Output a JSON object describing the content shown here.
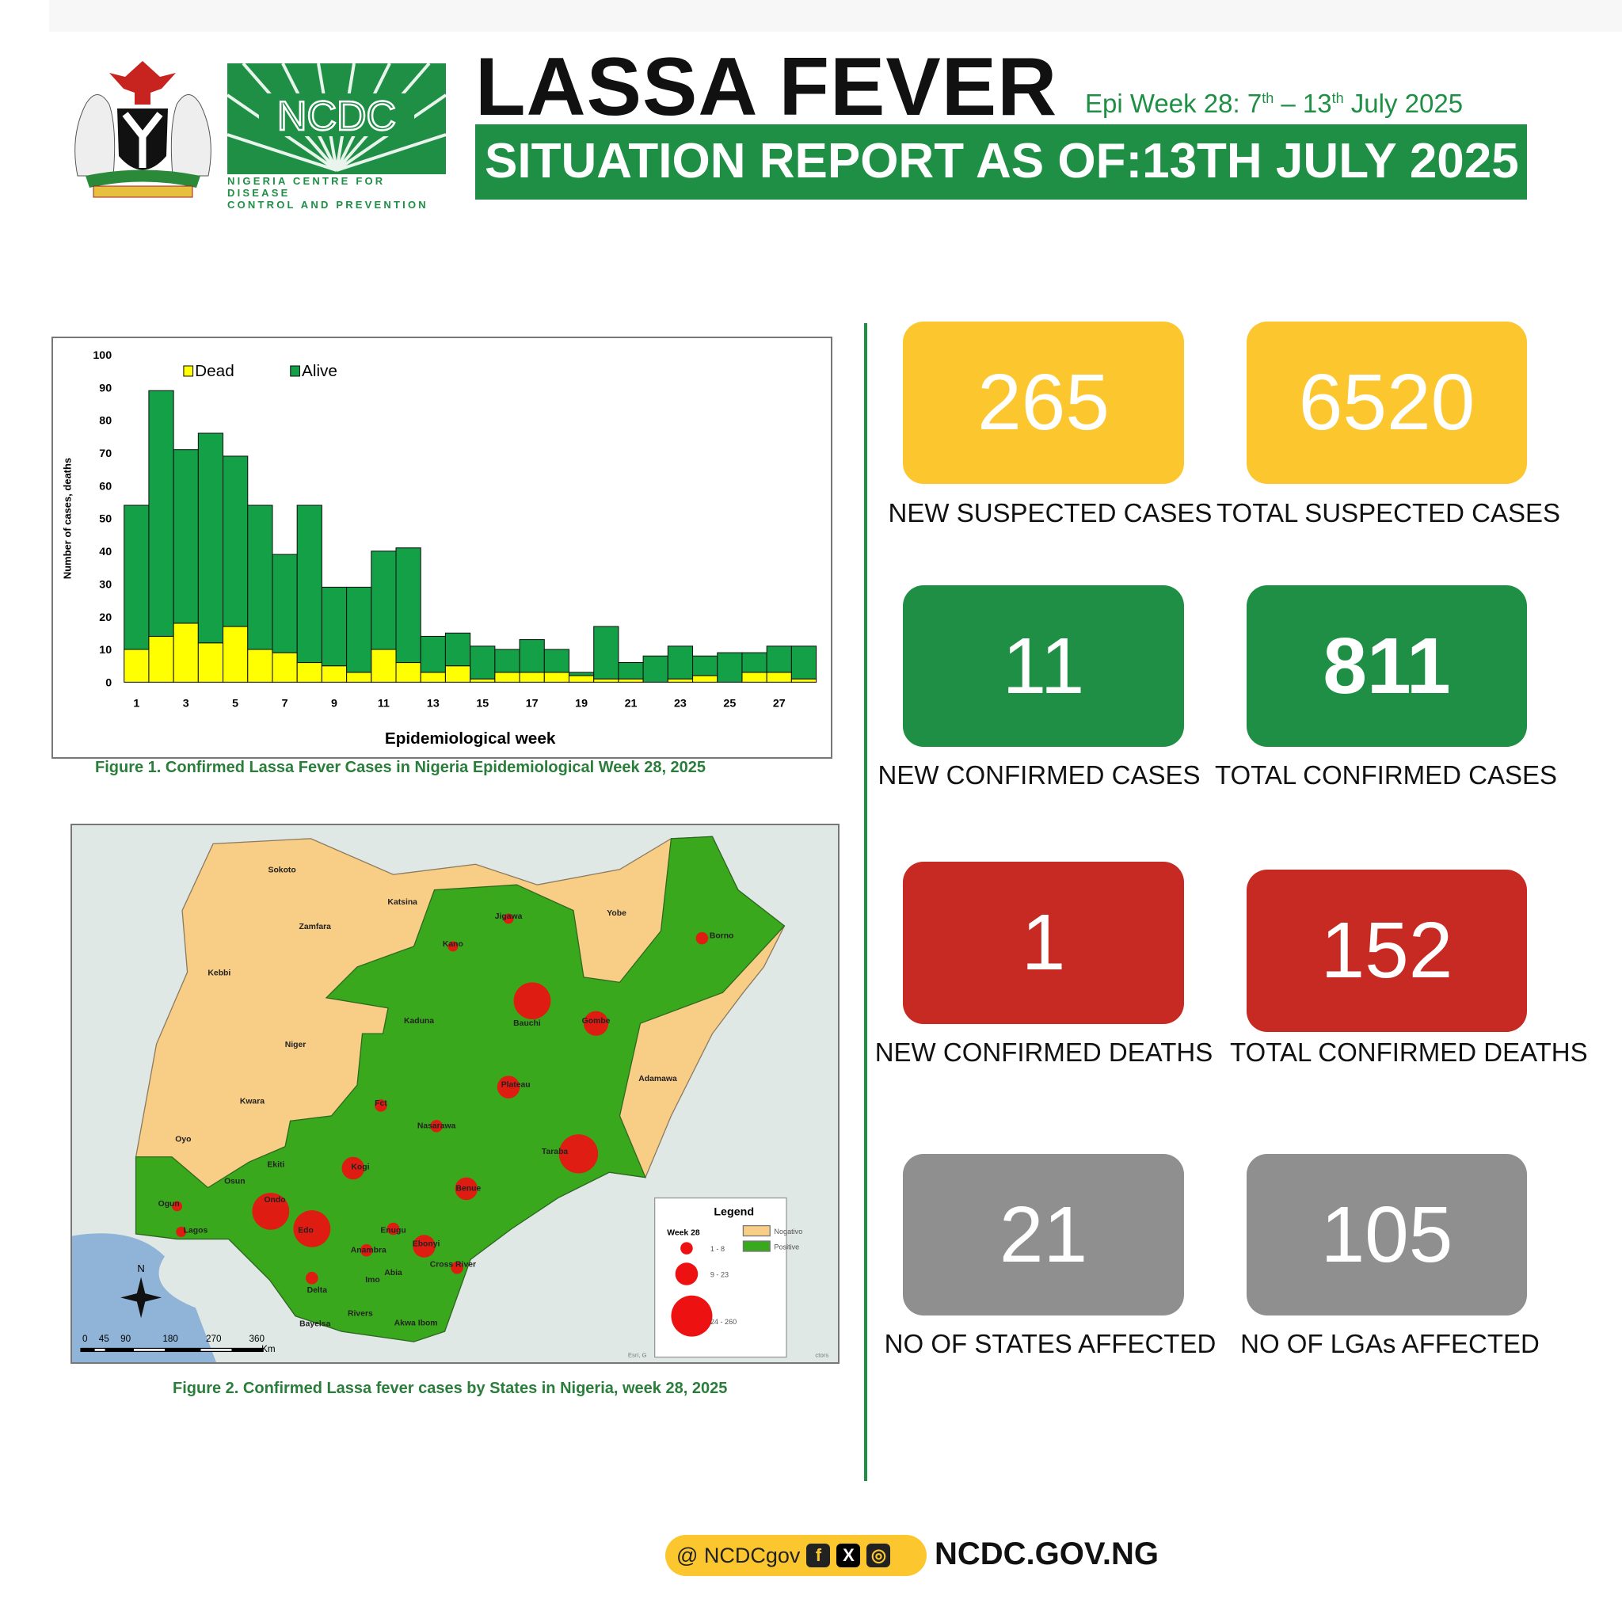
{
  "header": {
    "title": "LASSA FEVER",
    "epi_week_prefix": "Epi Week 28: 7",
    "sup1": "th",
    "epi_mid": " – 13",
    "sup2": "th",
    "epi_suffix": " July 2025",
    "banner": "SITUATION REPORT AS OF:13TH JULY 2025",
    "logo_name": "NCDC",
    "logo_line1": "NIGERIA CENTRE FOR DISEASE",
    "logo_line2": "CONTROL AND PREVENTION"
  },
  "chart_data": {
    "type": "bar",
    "stacked": true,
    "title": "Figure 1. Confirmed Lassa Fever Cases in Nigeria Epidemiological Week 28, 2025",
    "xlabel": "Epidemiological week",
    "ylabel": "Number of cases, deaths",
    "ylim": [
      0,
      100
    ],
    "yticks": [
      0,
      10,
      20,
      30,
      40,
      50,
      60,
      70,
      80,
      90,
      100
    ],
    "xticks": [
      1,
      3,
      5,
      7,
      9,
      11,
      13,
      15,
      17,
      19,
      21,
      23,
      25,
      27
    ],
    "legend": "top-left",
    "categories": [
      1,
      2,
      3,
      4,
      5,
      6,
      7,
      8,
      9,
      10,
      11,
      12,
      13,
      14,
      15,
      16,
      17,
      18,
      19,
      20,
      21,
      22,
      23,
      24,
      25,
      26,
      27,
      28
    ],
    "series": [
      {
        "name": "Dead",
        "color": "#ffff00",
        "values": [
          10,
          14,
          18,
          12,
          17,
          10,
          9,
          6,
          5,
          3,
          10,
          6,
          3,
          5,
          1,
          3,
          3,
          3,
          2,
          1,
          1,
          0,
          1,
          2,
          0,
          3,
          3,
          1
        ]
      },
      {
        "name": "Alive",
        "color": "#13a047",
        "values": [
          44,
          75,
          53,
          64,
          52,
          44,
          30,
          48,
          24,
          26,
          30,
          35,
          11,
          10,
          10,
          7,
          10,
          7,
          1,
          16,
          5,
          8,
          10,
          6,
          9,
          6,
          8,
          10
        ]
      }
    ]
  },
  "map": {
    "caption": "Figure 2. Confirmed Lassa fever cases by States in Nigeria, week 28, 2025",
    "states": [
      "Sokoto",
      "Zamfara",
      "Katsina",
      "Kebbi",
      "Jigawa",
      "Kano",
      "Yobe",
      "Borno",
      "Kaduna",
      "Bauchi",
      "Gombe",
      "Niger",
      "Plateau",
      "Adamawa",
      "Kwara",
      "Fct",
      "Nasarawa",
      "Oyo",
      "Taraba",
      "Kogi",
      "Ekiti",
      "Osun",
      "Benue",
      "Ondo",
      "Ogun",
      "Edo",
      "Lagos",
      "Enugu",
      "Ebonyi",
      "Cross River",
      "Anambra",
      "Delta",
      "Imo",
      "Abia",
      "Rivers",
      "Bayelsa",
      "Akwa Ibom"
    ],
    "legend": {
      "title": "Legend",
      "week": "Week 28",
      "sizes": [
        "1 - 8",
        "9 - 23",
        "24 - 260"
      ],
      "neg": "Nogativo",
      "pos": "Positive"
    },
    "scale": [
      "0",
      "45",
      "90",
      "180",
      "270",
      "360"
    ],
    "scale_unit": "Km",
    "north": "N",
    "credit_left": "Esri, G",
    "credit_right": "ctors"
  },
  "stats": [
    {
      "value": "265",
      "label": "NEW SUSPECTED CASES"
    },
    {
      "value": "6520",
      "label": "TOTAL SUSPECTED CASES"
    },
    {
      "value": "11",
      "label": "NEW CONFIRMED CASES"
    },
    {
      "value": "811",
      "label": "TOTAL CONFIRMED CASES"
    },
    {
      "value": "1",
      "label": "NEW CONFIRMED DEATHS"
    },
    {
      "value": "152",
      "label": "TOTAL CONFIRMED DEATHS"
    },
    {
      "value": "21",
      "label": "NO OF STATES AFFECTED"
    },
    {
      "value": "105",
      "label": "NO OF LGAs AFFECTED"
    }
  ],
  "footer": {
    "handle": "@ NCDCgov",
    "fb": "f",
    "x": "X",
    "ig": "◎",
    "site": "NCDC.GOV.NG"
  },
  "colors": {
    "green": "#1e8f45",
    "yellow": "#fcc72e",
    "red": "#c62a22",
    "gray": "#8f8f8f"
  }
}
